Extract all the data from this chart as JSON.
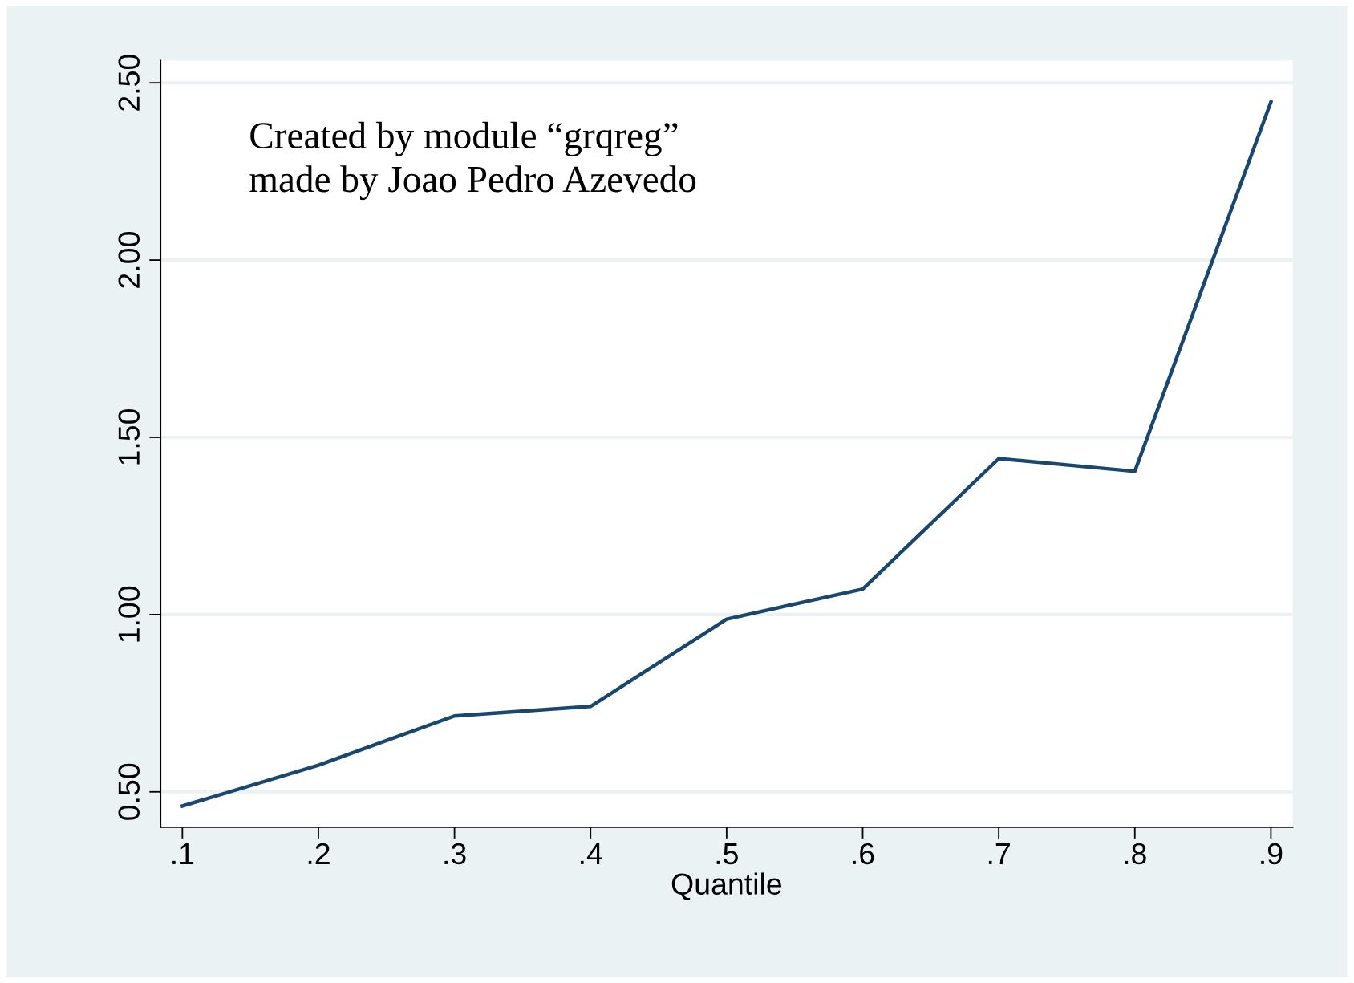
{
  "chart_data": {
    "type": "line",
    "xlabel": "Quantile",
    "x": [
      0.1,
      0.2,
      0.3,
      0.4,
      0.5,
      0.6,
      0.7,
      0.8,
      0.9
    ],
    "series": [
      {
        "color": "#1a476f",
        "values": [
          0.46,
          0.575,
          0.714,
          0.741,
          0.987,
          1.072,
          1.44,
          1.404,
          2.446
        ]
      }
    ],
    "xlim": [
      0.084,
      0.916
    ],
    "xticks": [
      {
        "value": 0.1,
        "label": ".1"
      },
      {
        "value": 0.2,
        "label": ".2"
      },
      {
        "value": 0.3,
        "label": ".3"
      },
      {
        "value": 0.4,
        "label": ".4"
      },
      {
        "value": 0.5,
        "label": ".5"
      },
      {
        "value": 0.6,
        "label": ".6"
      },
      {
        "value": 0.7,
        "label": ".7"
      },
      {
        "value": 0.8,
        "label": ".8"
      },
      {
        "value": 0.9,
        "label": ".9"
      }
    ],
    "ylim": [
      0.4,
      2.563
    ],
    "yticks": [
      {
        "value": 0.5,
        "label": "0.50"
      },
      {
        "value": 1.0,
        "label": "1.00"
      },
      {
        "value": 1.5,
        "label": "1.50"
      },
      {
        "value": 2.0,
        "label": "2.00"
      },
      {
        "value": 2.5,
        "label": "2.50"
      }
    ],
    "grid": "y",
    "legend": false,
    "marker": "none",
    "line_style": "solid",
    "annotations": [
      "Created by module “grqreg”\nmade by Joao Pedro Azevedo"
    ]
  }
}
